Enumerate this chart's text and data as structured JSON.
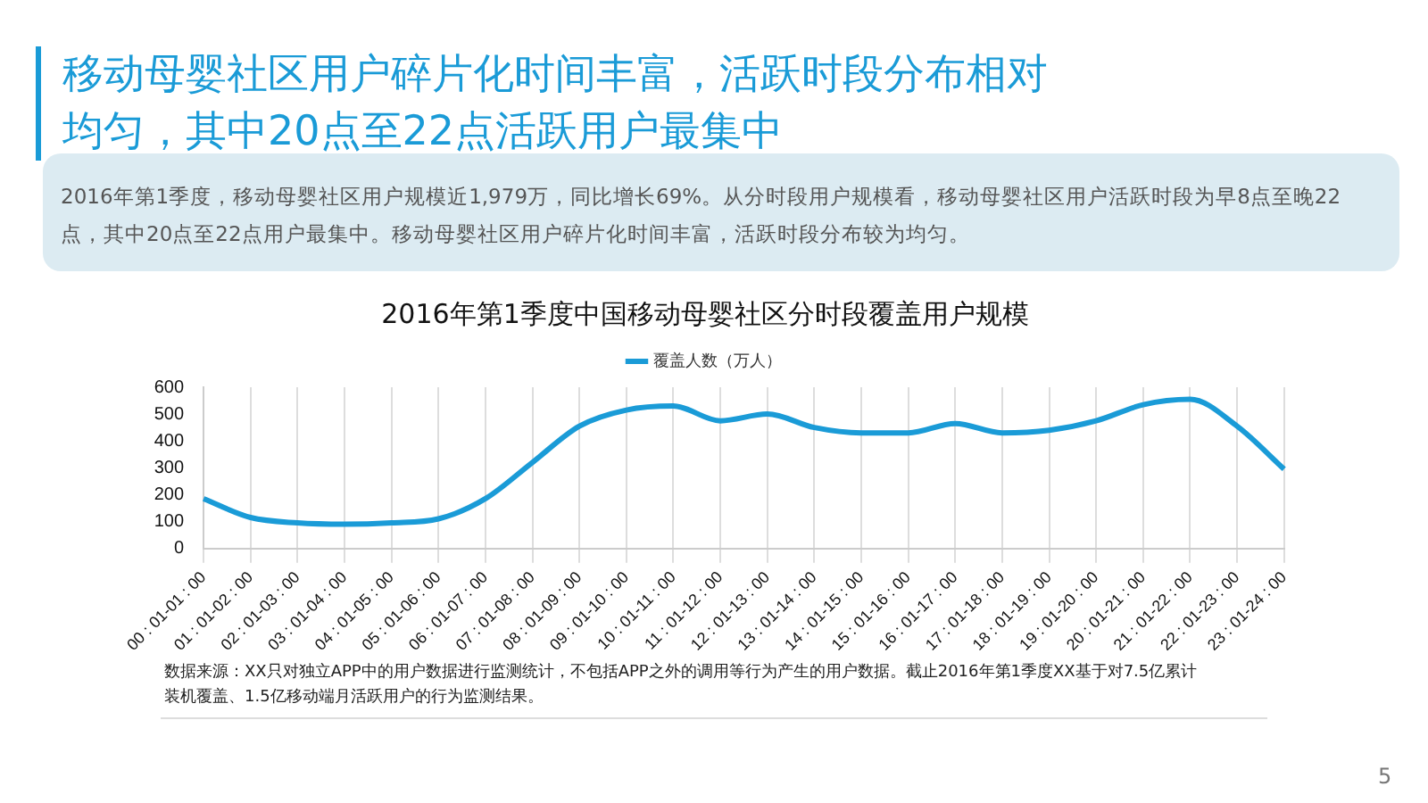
{
  "chart_data": {
    "type": "line",
    "title": "2016年第1季度中国移动母婴社区分时段覆盖用户规模",
    "categories": [
      "00 : 01-01 : 00",
      "01 : 01-02 : 00",
      "02 : 01-03 : 00",
      "03 : 01-04 : 00",
      "04 : 01-05 : 00",
      "05 : 01-06 : 00",
      "06 : 01-07 : 00",
      "07 : 01-08 : 00",
      "08 : 01-09 : 00",
      "09 : 01-10 : 00",
      "10 : 01-11 : 00",
      "11 : 01-12 : 00",
      "12 : 01-13 : 00",
      "13 : 01-14 : 00",
      "14 : 01-15 : 00",
      "15 : 01-16 : 00",
      "16 : 01-17 : 00",
      "17 : 01-18 : 00",
      "18 : 01-19 : 00",
      "19 : 01-20 : 00",
      "20 : 01-21 : 00",
      "21 : 01-22 : 00",
      "22 : 01-23 : 00",
      "23 : 01-24 : 00"
    ],
    "series": [
      {
        "name": "覆盖人数（万人）",
        "color": "#1a9bd7",
        "values": [
          185,
          115,
          95,
          90,
          95,
          110,
          185,
          320,
          455,
          515,
          530,
          475,
          500,
          450,
          430,
          430,
          465,
          430,
          440,
          475,
          535,
          555,
          455,
          295
        ]
      }
    ],
    "ylim": [
      0,
      600
    ],
    "yticks": [
      0,
      100,
      200,
      300,
      400,
      500,
      600
    ],
    "grid": "x",
    "legend": "top",
    "marker": "none",
    "line_style": "solid",
    "annotations": [
      "移动母婴社区用户碎片化时间丰富，活跃时段分布相对均匀，其中20点至22点活跃用户最集中",
      "2016年第1季度，移动母婴社区用户规模近1,979万，同比增长69%。从分时段用户规模看，移动母婴社区用户活跃时段为早8点至晚22点，其中20点至22点用户最集中。移动母婴社区用户碎片化时间丰富，活跃时段分布较为均匀。",
      "数据来源：XX只对独立APP中的用户数据进行监测统计，不包括APP之外的调用等行为产生的用户数据。截止2016年第1季度XX基于对7.5亿累计装机覆盖、1.5亿移动端月活跃用户的行为监测结果。",
      "5"
    ]
  }
}
